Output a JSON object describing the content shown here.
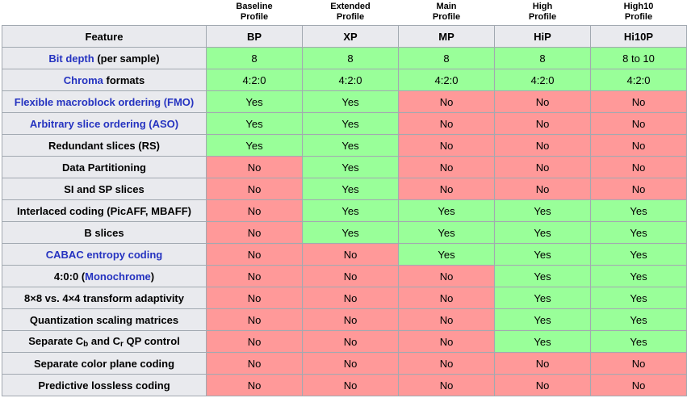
{
  "chart_data": {
    "type": "table",
    "feature_header": "Feature",
    "columns": [
      {
        "profile": "Baseline\nProfile",
        "abbr": "BP"
      },
      {
        "profile": "Extended\nProfile",
        "abbr": "XP"
      },
      {
        "profile": "Main\nProfile",
        "abbr": "MP"
      },
      {
        "profile": "High\nProfile",
        "abbr": "HiP"
      },
      {
        "profile": "High10\nProfile",
        "abbr": "Hi10P"
      }
    ],
    "rows": [
      {
        "feature": "Bit depth (per sample)",
        "label_parts": [
          {
            "t": "Bit depth",
            "s": "link"
          },
          {
            "t": " (per sample)"
          }
        ],
        "values": [
          "8",
          "8",
          "8",
          "8",
          "8 to 10"
        ]
      },
      {
        "feature": "Chroma formats",
        "label_parts": [
          {
            "t": "Chroma",
            "s": "link"
          },
          {
            "t": " formats"
          }
        ],
        "values": [
          "4:2:0",
          "4:2:0",
          "4:2:0",
          "4:2:0",
          "4:2:0"
        ]
      },
      {
        "feature": "Flexible macroblock ordering (FMO)",
        "label_parts": [
          {
            "t": "Flexible macroblock ordering (FMO)",
            "s": "link"
          }
        ],
        "values": [
          "Yes",
          "Yes",
          "No",
          "No",
          "No"
        ]
      },
      {
        "feature": "Arbitrary slice ordering (ASO)",
        "label_parts": [
          {
            "t": "Arbitrary slice ordering (ASO)",
            "s": "link"
          }
        ],
        "values": [
          "Yes",
          "Yes",
          "No",
          "No",
          "No"
        ]
      },
      {
        "feature": "Redundant slices (RS)",
        "label_parts": [
          {
            "t": "Redundant slices (RS)"
          }
        ],
        "values": [
          "Yes",
          "Yes",
          "No",
          "No",
          "No"
        ]
      },
      {
        "feature": "Data Partitioning",
        "label_parts": [
          {
            "t": "Data Partitioning"
          }
        ],
        "values": [
          "No",
          "Yes",
          "No",
          "No",
          "No"
        ]
      },
      {
        "feature": "SI and SP slices",
        "label_parts": [
          {
            "t": "SI and SP slices"
          }
        ],
        "values": [
          "No",
          "Yes",
          "No",
          "No",
          "No"
        ]
      },
      {
        "feature": "Interlaced coding (PicAFF, MBAFF)",
        "label_parts": [
          {
            "t": "Interlaced coding (PicAFF, MBAFF)"
          }
        ],
        "values": [
          "No",
          "Yes",
          "Yes",
          "Yes",
          "Yes"
        ]
      },
      {
        "feature": "B slices",
        "label_parts": [
          {
            "t": "B slices"
          }
        ],
        "values": [
          "No",
          "Yes",
          "Yes",
          "Yes",
          "Yes"
        ]
      },
      {
        "feature": "CABAC entropy coding",
        "label_parts": [
          {
            "t": "CABAC entropy coding",
            "s": "link"
          }
        ],
        "values": [
          "No",
          "No",
          "Yes",
          "Yes",
          "Yes"
        ]
      },
      {
        "feature": "4:0:0 (Monochrome)",
        "label_parts": [
          {
            "t": "4:0:0 ("
          },
          {
            "t": "Monochrome",
            "s": "link"
          },
          {
            "t": ")"
          }
        ],
        "values": [
          "No",
          "No",
          "No",
          "Yes",
          "Yes"
        ]
      },
      {
        "feature": "8×8 vs. 4×4 transform adaptivity",
        "label_parts": [
          {
            "t": "8×8 vs. 4×4 transform adaptivity"
          }
        ],
        "values": [
          "No",
          "No",
          "No",
          "Yes",
          "Yes"
        ]
      },
      {
        "feature": "Quantization scaling matrices",
        "label_parts": [
          {
            "t": "Quantization scaling matrices"
          }
        ],
        "values": [
          "No",
          "No",
          "No",
          "Yes",
          "Yes"
        ]
      },
      {
        "feature": "Separate Cb and Cr QP control",
        "label_parts": [
          {
            "t": "Separate C"
          },
          {
            "t": "b",
            "s": "sub"
          },
          {
            "t": " and C"
          },
          {
            "t": "r",
            "s": "sub"
          },
          {
            "t": " QP control"
          }
        ],
        "values": [
          "No",
          "No",
          "No",
          "Yes",
          "Yes"
        ]
      },
      {
        "feature": "Separate color plane coding",
        "label_parts": [
          {
            "t": "Separate color plane coding"
          }
        ],
        "values": [
          "No",
          "No",
          "No",
          "No",
          "No"
        ]
      },
      {
        "feature": "Predictive lossless coding",
        "label_parts": [
          {
            "t": "Predictive lossless coding"
          }
        ],
        "values": [
          "No",
          "No",
          "No",
          "No",
          "No"
        ]
      }
    ]
  },
  "colors": {
    "yes_bg": "#99ff99",
    "no_bg": "#ff9999",
    "header_bg": "#e9eaee",
    "border": "#a2a9b1",
    "link": "#2533c0"
  }
}
